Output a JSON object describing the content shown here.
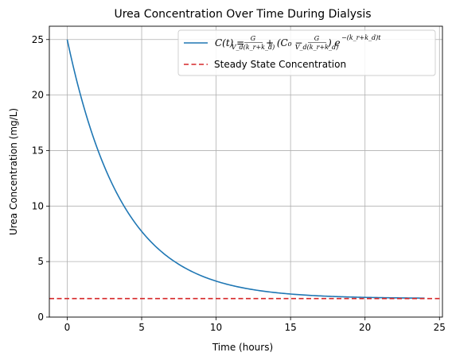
{
  "chart_data": {
    "type": "line",
    "title": "Urea Concentration Over Time During Dialysis",
    "xlabel": "Time (hours)",
    "ylabel": "Urea Concentration (mg/L)",
    "xlim": [
      -1.2,
      25.2
    ],
    "ylim": [
      0,
      26.2
    ],
    "xticks": [
      0,
      5,
      10,
      15,
      20,
      25
    ],
    "yticks": [
      0,
      5,
      10,
      15,
      20,
      25
    ],
    "grid": true,
    "legend_position": "top-right",
    "series": [
      {
        "name": "C(t) = G/(V_d(k_r+k_d)) + (C_0 − G/(V_d(k_r+k_d))) e^{−(k_r+k_d)t}",
        "style": "solid",
        "color": "#1f77b4",
        "model": {
          "type": "exponential_decay",
          "C0": 25,
          "C_ss": 1.67,
          "k": 0.27,
          "t_start": 0,
          "t_end": 24
        }
      },
      {
        "name": "Steady State Concentration",
        "style": "dashed",
        "color": "#d62728",
        "value": 1.67
      }
    ]
  }
}
